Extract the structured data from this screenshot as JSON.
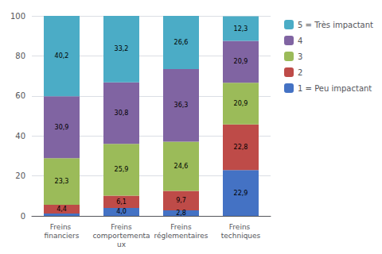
{
  "chart_data": {
    "type": "bar",
    "stacked": true,
    "categories": [
      "Freins financiers",
      "Freins\ncomportementaux",
      "Freins\nréglementaires",
      "Freins techniques"
    ],
    "series": [
      {
        "name": "1 = Peu impactant",
        "color": "#4472C4",
        "values": [
          1.2,
          4.0,
          2.8,
          22.9
        ],
        "value_labels": [
          null,
          "4,0",
          "2,8",
          "22,9"
        ]
      },
      {
        "name": "2",
        "color": "#BE4B48",
        "values": [
          4.4,
          6.1,
          9.7,
          22.8
        ],
        "value_labels": [
          "4,4",
          "6,1",
          "9,7",
          "22,8"
        ]
      },
      {
        "name": "3",
        "color": "#9BBB59",
        "values": [
          23.3,
          25.9,
          24.6,
          20.9
        ],
        "value_labels": [
          "23,3",
          "25,9",
          "24,6",
          "20,9"
        ]
      },
      {
        "name": "4",
        "color": "#8064A2",
        "values": [
          30.9,
          30.8,
          36.3,
          20.9
        ],
        "value_labels": [
          "30,9",
          "30,8",
          "36,3",
          "20,9"
        ]
      },
      {
        "name": "5 = Très impactant",
        "color": "#4BACC6",
        "values": [
          40.2,
          33.2,
          26.6,
          12.3
        ],
        "value_labels": [
          "40,2",
          "33,2",
          "26,6",
          "12,3"
        ]
      }
    ],
    "ylim": [
      0,
      100
    ],
    "yticks": [
      0,
      20,
      40,
      60,
      80,
      100
    ],
    "grid": true,
    "legend": "right",
    "data_labels": true
  }
}
